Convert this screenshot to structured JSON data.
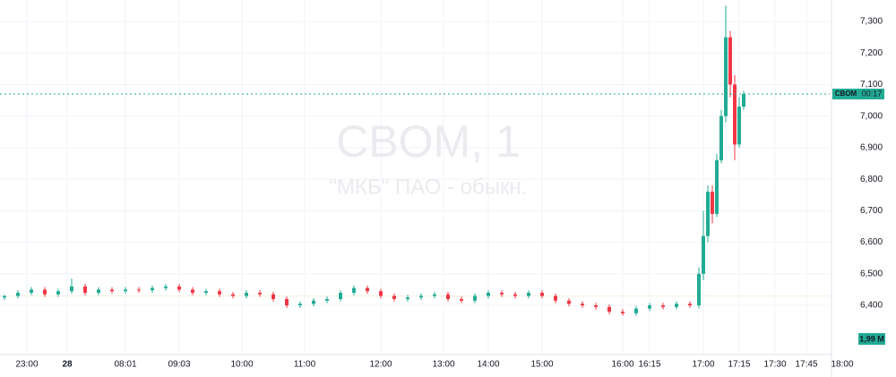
{
  "chart_data": {
    "type": "candlestick",
    "title": "CBOM, 1",
    "subtitle": "\"МКБ\" ПАО - обыкн.",
    "x": [
      0,
      3,
      6,
      9,
      12,
      15,
      18,
      21,
      24,
      27,
      30,
      33,
      36,
      39,
      42,
      45,
      48,
      51,
      54,
      57,
      60,
      63,
      66,
      69,
      72,
      75,
      78,
      81,
      84,
      87,
      90,
      93,
      96,
      99,
      102,
      105,
      108,
      111,
      114,
      117,
      120,
      123,
      126,
      129,
      132,
      135,
      138,
      141,
      144,
      147,
      150,
      153,
      155,
      156,
      157,
      158,
      159,
      160,
      161,
      162,
      163,
      164,
      165
    ],
    "open": [
      6425,
      6430,
      6440,
      6450,
      6435,
      6445,
      6460,
      6440,
      6450,
      6445,
      6450,
      6448,
      6455,
      6460,
      6450,
      6440,
      6445,
      6435,
      6430,
      6440,
      6435,
      6420,
      6400,
      6405,
      6415,
      6420,
      6440,
      6455,
      6445,
      6430,
      6420,
      6425,
      6430,
      6435,
      6420,
      6415,
      6430,
      6440,
      6435,
      6430,
      6440,
      6430,
      6415,
      6405,
      6400,
      6395,
      6380,
      6375,
      6390,
      6400,
      6395,
      6405,
      6400,
      6500,
      6620,
      6760,
      6690,
      6860,
      7000,
      7250,
      7100,
      6910,
      7030
    ],
    "high": [
      6433,
      6448,
      6458,
      6458,
      6453,
      6485,
      6468,
      6458,
      6458,
      6458,
      6458,
      6463,
      6468,
      6468,
      6458,
      6453,
      6453,
      6443,
      6448,
      6448,
      6443,
      6428,
      6413,
      6423,
      6428,
      6448,
      6463,
      6463,
      6453,
      6438,
      6433,
      6438,
      6443,
      6443,
      6428,
      6438,
      6448,
      6448,
      6443,
      6448,
      6448,
      6438,
      6423,
      6413,
      6408,
      6403,
      6388,
      6398,
      6408,
      6408,
      6413,
      6413,
      6520,
      6700,
      6780,
      6780,
      6880,
      7020,
      7350,
      7270,
      7130,
      7060,
      7080
    ],
    "low": [
      6417,
      6422,
      6432,
      6427,
      6427,
      6437,
      6432,
      6432,
      6437,
      6437,
      6440,
      6440,
      6447,
      6442,
      6432,
      6432,
      6427,
      6422,
      6422,
      6427,
      6412,
      6392,
      6392,
      6397,
      6407,
      6412,
      6432,
      6437,
      6422,
      6412,
      6412,
      6417,
      6422,
      6412,
      6407,
      6407,
      6422,
      6427,
      6422,
      6422,
      6422,
      6407,
      6397,
      6392,
      6387,
      6372,
      6367,
      6367,
      6382,
      6387,
      6387,
      6392,
      6390,
      6480,
      6600,
      6660,
      6680,
      6850,
      6980,
      7060,
      6860,
      6900,
      7020
    ],
    "close": [
      6430,
      6440,
      6450,
      6435,
      6445,
      6460,
      6440,
      6450,
      6445,
      6450,
      6448,
      6455,
      6460,
      6450,
      6440,
      6445,
      6435,
      6430,
      6440,
      6435,
      6420,
      6400,
      6405,
      6415,
      6420,
      6440,
      6455,
      6445,
      6430,
      6420,
      6425,
      6430,
      6435,
      6420,
      6415,
      6430,
      6440,
      6435,
      6430,
      6440,
      6430,
      6415,
      6405,
      6400,
      6395,
      6380,
      6375,
      6390,
      6400,
      6395,
      6405,
      6400,
      6500,
      6620,
      6760,
      6690,
      6860,
      7000,
      7250,
      7100,
      6910,
      7030,
      7070
    ],
    "up_color": "#22ab94",
    "down_color": "#f23645",
    "xlim": [
      0,
      190
    ],
    "ylim": [
      6244,
      7368
    ],
    "xticks": [
      {
        "value": 5,
        "label": "23:00"
      },
      {
        "value": 14,
        "label": "28"
      },
      {
        "value": 27,
        "label": "08:01"
      },
      {
        "value": 39,
        "label": "09:03"
      },
      {
        "value": 53,
        "label": "10:00"
      },
      {
        "value": 67,
        "label": "11:00"
      },
      {
        "value": 84,
        "label": "12:00"
      },
      {
        "value": 98,
        "label": "13:00"
      },
      {
        "value": 108,
        "label": "14:00"
      },
      {
        "value": 120,
        "label": "15:00"
      },
      {
        "value": 138,
        "label": "16:00"
      },
      {
        "value": 144,
        "label": "16:15"
      },
      {
        "value": 156,
        "label": "17:00"
      },
      {
        "value": 164,
        "label": "17:15"
      },
      {
        "value": 172,
        "label": "17:30"
      },
      {
        "value": 179,
        "label": "17:45"
      },
      {
        "value": 187,
        "label": "18:00"
      }
    ],
    "yticks": [
      {
        "value": 6400,
        "label": "6,400"
      },
      {
        "value": 6500,
        "label": "6,500"
      },
      {
        "value": 6600,
        "label": "6,600"
      },
      {
        "value": 6700,
        "label": "6,700"
      },
      {
        "value": 6800,
        "label": "6,800"
      },
      {
        "value": 6900,
        "label": "6,900"
      },
      {
        "value": 7000,
        "label": "7,000"
      },
      {
        "value": 7100,
        "label": "7,100"
      },
      {
        "value": 7200,
        "label": "7,200"
      },
      {
        "value": 7300,
        "label": "7,300"
      }
    ],
    "grid": true,
    "last_price": 7070,
    "prev_close": 6430,
    "ticker_label": "CBOM",
    "countdown": "00:17",
    "volume_label": "1,99 M"
  }
}
